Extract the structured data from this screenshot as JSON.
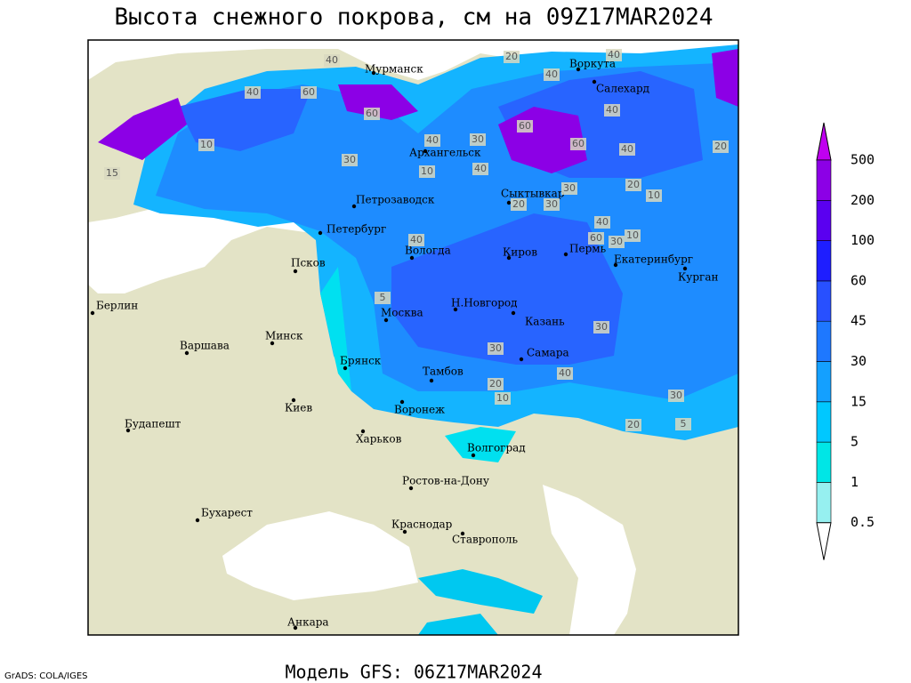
{
  "title": "Высота снежного покрова, см на 09Z17MAR2024",
  "footer": "Модель GFS: 06Z17MAR2024",
  "credit": "GrADS: COLA/IGES",
  "cities": [
    "Мурманск",
    "Воркута",
    "Салехард",
    "Архангельск",
    "Сыктывкар",
    "Петрозаводск",
    "Петербург",
    "Псков",
    "Вологда",
    "Киров",
    "Пермь",
    "Екатеринбург",
    "Курган",
    "Н.Новгород",
    "Москва",
    "Казань",
    "Берлин",
    "Минск",
    "Варшава",
    "Самара",
    "Брянск",
    "Тамбов",
    "Воронеж",
    "Киев",
    "Будапешт",
    "Харьков",
    "Волгоград",
    "Ростов-на-Дону",
    "Бухарест",
    "Краснодар",
    "Ставрополь",
    "Анкара"
  ],
  "contour_labels": [
    40,
    20,
    40,
    40,
    40,
    60,
    60,
    40,
    30,
    60,
    60,
    40,
    40,
    20,
    30,
    10,
    40,
    30,
    20,
    10,
    20,
    30,
    40,
    60,
    30,
    10,
    40,
    5,
    30,
    30,
    20,
    10,
    5,
    40,
    30,
    20,
    10,
    15
  ],
  "legend": {
    "levels": [
      0.5,
      1,
      5,
      15,
      30,
      45,
      60,
      100,
      200,
      500
    ],
    "colors": [
      "#ffffff",
      "#96f0f0",
      "#00e6e6",
      "#00c8ff",
      "#14a0ff",
      "#1e78ff",
      "#2850ff",
      "#1e1eff",
      "#5a00f0",
      "#8c00e6",
      "#c000f0"
    ]
  }
}
